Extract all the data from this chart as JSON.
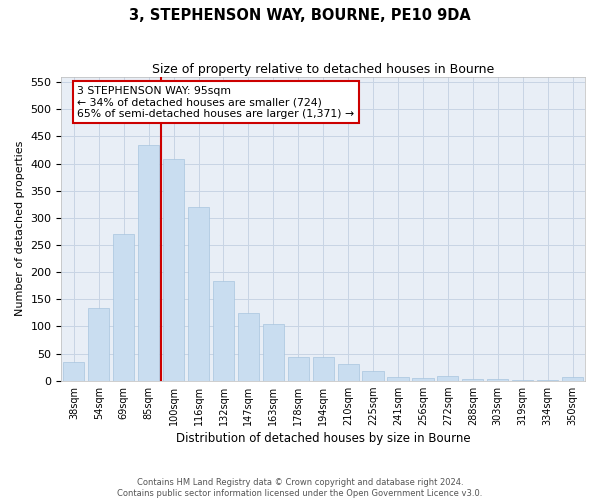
{
  "title": "3, STEPHENSON WAY, BOURNE, PE10 9DA",
  "subtitle": "Size of property relative to detached houses in Bourne",
  "xlabel": "Distribution of detached houses by size in Bourne",
  "ylabel": "Number of detached properties",
  "categories": [
    "38sqm",
    "54sqm",
    "69sqm",
    "85sqm",
    "100sqm",
    "116sqm",
    "132sqm",
    "147sqm",
    "163sqm",
    "178sqm",
    "194sqm",
    "210sqm",
    "225sqm",
    "241sqm",
    "256sqm",
    "272sqm",
    "288sqm",
    "303sqm",
    "319sqm",
    "334sqm",
    "350sqm"
  ],
  "values": [
    35,
    133,
    270,
    435,
    408,
    320,
    183,
    125,
    105,
    44,
    44,
    30,
    18,
    7,
    5,
    8,
    4,
    3,
    2,
    1,
    7
  ],
  "bar_color": "#c9ddf0",
  "bar_edge_color": "#a8c4de",
  "property_line_color": "#cc0000",
  "annotation_text": "3 STEPHENSON WAY: 95sqm\n← 34% of detached houses are smaller (724)\n65% of semi-detached houses are larger (1,371) →",
  "annotation_box_facecolor": "#ffffff",
  "annotation_box_edgecolor": "#cc0000",
  "ylim": [
    0,
    560
  ],
  "yticks": [
    0,
    50,
    100,
    150,
    200,
    250,
    300,
    350,
    400,
    450,
    500,
    550
  ],
  "grid_color": "#c8d4e4",
  "plot_bg_color": "#e8eef6",
  "fig_bg_color": "#ffffff",
  "footer_line1": "Contains HM Land Registry data © Crown copyright and database right 2024.",
  "footer_line2": "Contains public sector information licensed under the Open Government Licence v3.0."
}
